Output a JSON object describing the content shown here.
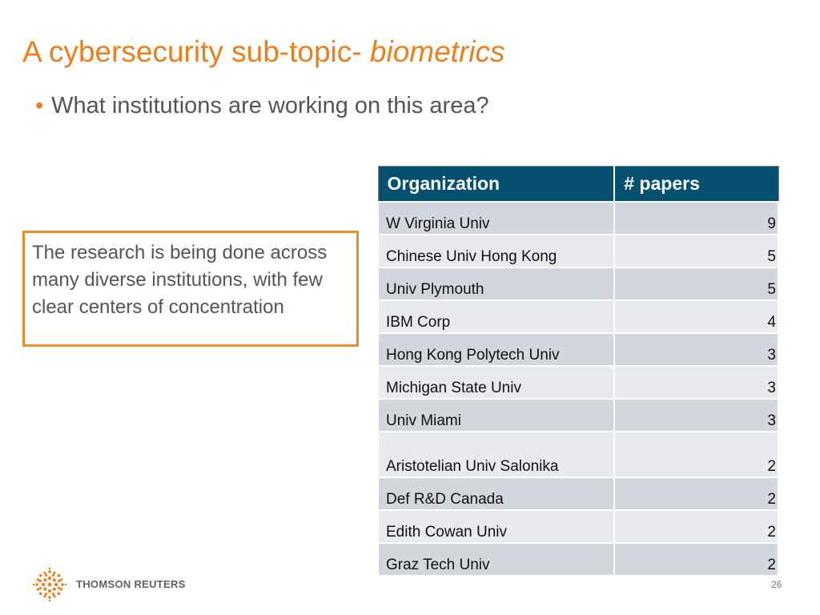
{
  "slide": {
    "title_plain": "A cybersecurity sub-topic- ",
    "title_emphasis": "biometrics",
    "bullet": "What institutions are working on this area?",
    "callout": "The research is being done across many diverse institutions, with few clear centers of concentration",
    "brand": "THOMSON REUTERS",
    "page_number": "26",
    "accent_color": "#ee7d1b",
    "header_color": "#06506f"
  },
  "table": {
    "headers": [
      "Organization",
      "# papers"
    ],
    "rows": [
      {
        "organization": "W Virginia Univ",
        "papers": "9"
      },
      {
        "organization": "Chinese Univ Hong Kong",
        "papers": "5"
      },
      {
        "organization": "Univ Plymouth",
        "papers": "5"
      },
      {
        "organization": "IBM Corp",
        "papers": "4"
      },
      {
        "organization": "Hong Kong Polytech Univ",
        "papers": "3"
      },
      {
        "organization": "Michigan State Univ",
        "papers": "3"
      },
      {
        "organization": "Univ Miami",
        "papers": "3"
      },
      {
        "organization": "Aristotelian Univ Salonika",
        "papers": "2"
      },
      {
        "organization": "Def R&D Canada",
        "papers": "2"
      },
      {
        "organization": "Edith Cowan Univ",
        "papers": "2"
      },
      {
        "organization": "Graz Tech Univ",
        "papers": "2"
      }
    ]
  }
}
